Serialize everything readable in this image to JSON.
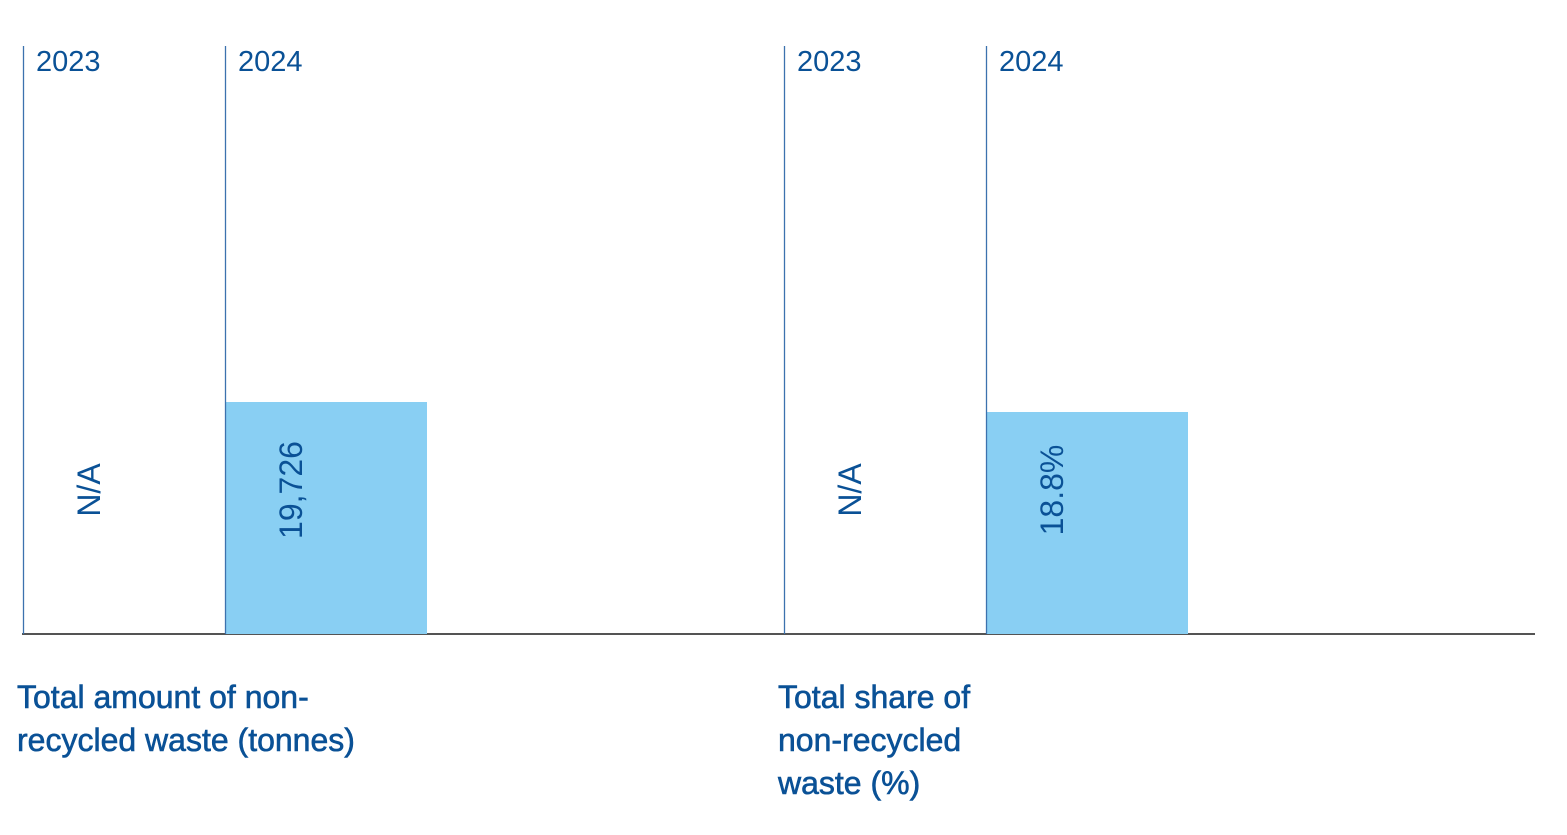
{
  "colors": {
    "text": "#0a5196",
    "axis": "#1b1b1b",
    "year_line": "#3c72ae",
    "bar": "#89cff3"
  },
  "chart_data": [
    {
      "type": "bar",
      "title": "Total amount of non-recycled waste (tonnes)",
      "categories": [
        "2023",
        "2024"
      ],
      "values": [
        null,
        19726
      ],
      "value_labels": [
        "N/A",
        "19,726"
      ],
      "xlabel": "",
      "ylabel": "",
      "grid": false
    },
    {
      "type": "bar",
      "title": "Total share of non-recycled waste (%)",
      "categories": [
        "2023",
        "2024"
      ],
      "values": [
        null,
        18.8
      ],
      "value_labels": [
        "N/A",
        "18.8%"
      ],
      "xlabel": "",
      "ylabel": "",
      "grid": false
    }
  ]
}
